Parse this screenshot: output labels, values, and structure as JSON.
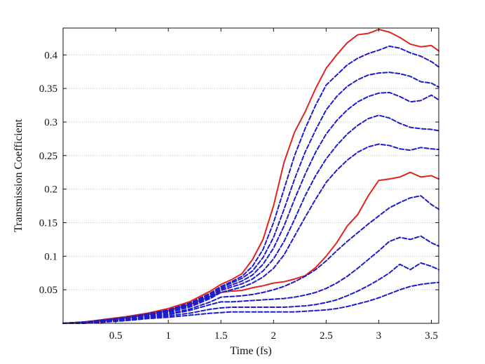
{
  "chart_data": {
    "type": "line",
    "title": "",
    "xlabel": "Time (fs)",
    "ylabel": "Transmission Coefficient",
    "xlim": [
      0,
      3.57
    ],
    "ylim": [
      0,
      0.44
    ],
    "x_ticks": [
      0.5,
      1,
      1.5,
      2,
      2.5,
      3,
      3.5
    ],
    "x_tick_labels": [
      "0.5",
      "1",
      "1.5",
      "2",
      "2.5",
      "3",
      "3.5"
    ],
    "y_ticks": [
      0.05,
      0.1,
      0.15,
      0.2,
      0.25,
      0.3,
      0.35,
      0.4
    ],
    "y_tick_labels": [
      "0.05",
      "0.1",
      "0.15",
      "0.2",
      "0.25",
      "0.3",
      "0.35",
      "0.4"
    ],
    "grid": "horizontal dotted",
    "legend": "none",
    "colors": {
      "solid": "#e0231c",
      "dashed": "#1c1ccc",
      "axis": "#111111",
      "grid": "#bdbdbd"
    },
    "series": [
      {
        "name": "upper-solid",
        "style": "solid",
        "color": "#e0231c",
        "x": [
          0,
          0.2,
          0.4,
          0.6,
          0.8,
          1.0,
          1.2,
          1.4,
          1.5,
          1.6,
          1.7,
          1.8,
          1.9,
          2.0,
          2.1,
          2.2,
          2.3,
          2.4,
          2.5,
          2.6,
          2.7,
          2.8,
          2.9,
          3.0,
          3.1,
          3.2,
          3.3,
          3.4,
          3.5,
          3.57
        ],
        "y": [
          0.0,
          0.002,
          0.006,
          0.01,
          0.015,
          0.022,
          0.032,
          0.048,
          0.058,
          0.065,
          0.074,
          0.095,
          0.125,
          0.175,
          0.24,
          0.285,
          0.315,
          0.35,
          0.38,
          0.4,
          0.418,
          0.43,
          0.432,
          0.438,
          0.434,
          0.426,
          0.416,
          0.412,
          0.414,
          0.406
        ]
      },
      {
        "name": "lower-solid",
        "style": "solid",
        "color": "#e0231c",
        "x": [
          0,
          0.2,
          0.4,
          0.6,
          0.8,
          1.0,
          1.2,
          1.4,
          1.5,
          1.6,
          1.7,
          1.8,
          1.9,
          2.0,
          2.1,
          2.2,
          2.3,
          2.4,
          2.5,
          2.6,
          2.7,
          2.8,
          2.9,
          3.0,
          3.1,
          3.2,
          3.3,
          3.4,
          3.5,
          3.57
        ],
        "y": [
          0.0,
          0.001,
          0.004,
          0.008,
          0.013,
          0.019,
          0.028,
          0.04,
          0.046,
          0.048,
          0.049,
          0.053,
          0.056,
          0.06,
          0.062,
          0.066,
          0.071,
          0.083,
          0.1,
          0.12,
          0.145,
          0.162,
          0.19,
          0.213,
          0.215,
          0.218,
          0.225,
          0.218,
          0.22,
          0.215
        ]
      },
      {
        "name": "dashed-1",
        "style": "dashed",
        "color": "#1c1ccc",
        "x": [
          0,
          0.2,
          0.4,
          0.6,
          0.8,
          1.0,
          1.2,
          1.4,
          1.5,
          1.6,
          1.7,
          1.8,
          1.9,
          2.0,
          2.1,
          2.2,
          2.3,
          2.4,
          2.5,
          2.6,
          2.7,
          2.8,
          2.9,
          3.0,
          3.1,
          3.2,
          3.3,
          3.4,
          3.5,
          3.57
        ],
        "y": [
          0.0,
          0.002,
          0.005,
          0.009,
          0.014,
          0.02,
          0.03,
          0.045,
          0.055,
          0.062,
          0.07,
          0.085,
          0.11,
          0.15,
          0.2,
          0.25,
          0.29,
          0.325,
          0.355,
          0.37,
          0.385,
          0.395,
          0.402,
          0.407,
          0.413,
          0.41,
          0.403,
          0.398,
          0.39,
          0.382
        ]
      },
      {
        "name": "dashed-2",
        "style": "dashed",
        "color": "#1c1ccc",
        "x": [
          0,
          0.2,
          0.4,
          0.6,
          0.8,
          1.0,
          1.2,
          1.4,
          1.5,
          1.6,
          1.7,
          1.8,
          1.9,
          2.0,
          2.1,
          2.2,
          2.3,
          2.4,
          2.5,
          2.6,
          2.7,
          2.8,
          2.9,
          3.0,
          3.1,
          3.2,
          3.3,
          3.4,
          3.5,
          3.57
        ],
        "y": [
          0.0,
          0.002,
          0.005,
          0.009,
          0.013,
          0.019,
          0.029,
          0.043,
          0.053,
          0.06,
          0.067,
          0.078,
          0.098,
          0.128,
          0.17,
          0.215,
          0.255,
          0.288,
          0.318,
          0.338,
          0.353,
          0.363,
          0.37,
          0.373,
          0.374,
          0.372,
          0.368,
          0.36,
          0.358,
          0.352
        ]
      },
      {
        "name": "dashed-3",
        "style": "dashed",
        "color": "#1c1ccc",
        "x": [
          0,
          0.2,
          0.4,
          0.6,
          0.8,
          1.0,
          1.2,
          1.4,
          1.5,
          1.6,
          1.7,
          1.8,
          1.9,
          2.0,
          2.1,
          2.2,
          2.3,
          2.4,
          2.5,
          2.6,
          2.7,
          2.8,
          2.9,
          3.0,
          3.1,
          3.2,
          3.3,
          3.4,
          3.5,
          3.57
        ],
        "y": [
          0.0,
          0.002,
          0.005,
          0.008,
          0.013,
          0.018,
          0.027,
          0.041,
          0.051,
          0.057,
          0.063,
          0.072,
          0.088,
          0.112,
          0.145,
          0.185,
          0.222,
          0.255,
          0.282,
          0.302,
          0.318,
          0.33,
          0.338,
          0.343,
          0.344,
          0.338,
          0.33,
          0.332,
          0.34,
          0.333
        ]
      },
      {
        "name": "dashed-4",
        "style": "dashed",
        "color": "#1c1ccc",
        "x": [
          0,
          0.2,
          0.4,
          0.6,
          0.8,
          1.0,
          1.2,
          1.4,
          1.5,
          1.6,
          1.7,
          1.8,
          1.9,
          2.0,
          2.1,
          2.2,
          2.3,
          2.4,
          2.5,
          2.6,
          2.7,
          2.8,
          2.9,
          3.0,
          3.1,
          3.2,
          3.3,
          3.4,
          3.5,
          3.57
        ],
        "y": [
          0.0,
          0.001,
          0.004,
          0.008,
          0.012,
          0.017,
          0.026,
          0.039,
          0.049,
          0.054,
          0.059,
          0.066,
          0.078,
          0.096,
          0.122,
          0.155,
          0.19,
          0.22,
          0.245,
          0.265,
          0.282,
          0.295,
          0.305,
          0.31,
          0.306,
          0.298,
          0.292,
          0.29,
          0.289,
          0.287
        ]
      },
      {
        "name": "dashed-5",
        "style": "dashed",
        "color": "#1c1ccc",
        "x": [
          0,
          0.2,
          0.4,
          0.6,
          0.8,
          1.0,
          1.2,
          1.4,
          1.5,
          1.6,
          1.7,
          1.8,
          1.9,
          2.0,
          2.1,
          2.2,
          2.3,
          2.4,
          2.5,
          2.6,
          2.7,
          2.8,
          2.9,
          3.0,
          3.1,
          3.2,
          3.3,
          3.4,
          3.5,
          3.57
        ],
        "y": [
          0.0,
          0.001,
          0.004,
          0.007,
          0.011,
          0.016,
          0.024,
          0.037,
          0.046,
          0.05,
          0.054,
          0.06,
          0.069,
          0.082,
          0.102,
          0.13,
          0.158,
          0.185,
          0.21,
          0.228,
          0.243,
          0.255,
          0.263,
          0.267,
          0.265,
          0.26,
          0.258,
          0.262,
          0.26,
          0.259
        ]
      },
      {
        "name": "dashed-6",
        "style": "dashed",
        "color": "#1c1ccc",
        "x": [
          0,
          0.2,
          0.4,
          0.6,
          0.8,
          1.0,
          1.2,
          1.4,
          1.5,
          1.6,
          1.7,
          1.8,
          1.9,
          2.0,
          2.1,
          2.2,
          2.3,
          2.4,
          2.5,
          2.6,
          2.7,
          2.8,
          2.9,
          3.0,
          3.1,
          3.2,
          3.3,
          3.4,
          3.5,
          3.57
        ],
        "y": [
          0.0,
          0.001,
          0.003,
          0.006,
          0.01,
          0.014,
          0.021,
          0.032,
          0.039,
          0.04,
          0.041,
          0.043,
          0.046,
          0.05,
          0.055,
          0.062,
          0.07,
          0.08,
          0.093,
          0.108,
          0.122,
          0.135,
          0.148,
          0.16,
          0.172,
          0.18,
          0.187,
          0.19,
          0.177,
          0.17
        ]
      },
      {
        "name": "dashed-7",
        "style": "dashed",
        "color": "#1c1ccc",
        "x": [
          0,
          0.2,
          0.4,
          0.6,
          0.8,
          1.0,
          1.2,
          1.4,
          1.5,
          1.6,
          1.7,
          1.8,
          1.9,
          2.0,
          2.1,
          2.2,
          2.3,
          2.4,
          2.5,
          2.6,
          2.7,
          2.8,
          2.9,
          3.0,
          3.1,
          3.2,
          3.3,
          3.4,
          3.5,
          3.57
        ],
        "y": [
          0.0,
          0.001,
          0.003,
          0.005,
          0.009,
          0.013,
          0.019,
          0.028,
          0.032,
          0.032,
          0.033,
          0.034,
          0.035,
          0.036,
          0.037,
          0.039,
          0.042,
          0.046,
          0.052,
          0.06,
          0.07,
          0.082,
          0.095,
          0.108,
          0.122,
          0.128,
          0.125,
          0.13,
          0.12,
          0.115
        ]
      },
      {
        "name": "dashed-8",
        "style": "dashed",
        "color": "#1c1ccc",
        "x": [
          0,
          0.2,
          0.4,
          0.6,
          0.8,
          1.0,
          1.2,
          1.4,
          1.5,
          1.6,
          1.7,
          1.8,
          1.9,
          2.0,
          2.1,
          2.2,
          2.3,
          2.4,
          2.5,
          2.6,
          2.7,
          2.8,
          2.9,
          3.0,
          3.1,
          3.2,
          3.3,
          3.4,
          3.5,
          3.57
        ],
        "y": [
          0.0,
          0.001,
          0.002,
          0.005,
          0.008,
          0.011,
          0.015,
          0.021,
          0.023,
          0.024,
          0.024,
          0.024,
          0.024,
          0.024,
          0.024,
          0.025,
          0.026,
          0.028,
          0.031,
          0.035,
          0.041,
          0.048,
          0.056,
          0.065,
          0.075,
          0.088,
          0.08,
          0.09,
          0.085,
          0.08
        ]
      },
      {
        "name": "dashed-9",
        "style": "dashed",
        "color": "#1c1ccc",
        "x": [
          0,
          0.2,
          0.4,
          0.6,
          0.8,
          1.0,
          1.2,
          1.4,
          1.5,
          1.6,
          1.7,
          1.8,
          1.9,
          2.0,
          2.1,
          2.2,
          2.3,
          2.4,
          2.5,
          2.6,
          2.7,
          2.8,
          2.9,
          3.0,
          3.1,
          3.2,
          3.3,
          3.4,
          3.5,
          3.57
        ],
        "y": [
          0.0,
          0.0,
          0.002,
          0.004,
          0.007,
          0.009,
          0.012,
          0.015,
          0.016,
          0.017,
          0.017,
          0.017,
          0.017,
          0.017,
          0.017,
          0.017,
          0.018,
          0.019,
          0.02,
          0.022,
          0.025,
          0.029,
          0.033,
          0.038,
          0.044,
          0.05,
          0.055,
          0.058,
          0.06,
          0.061
        ]
      }
    ]
  }
}
